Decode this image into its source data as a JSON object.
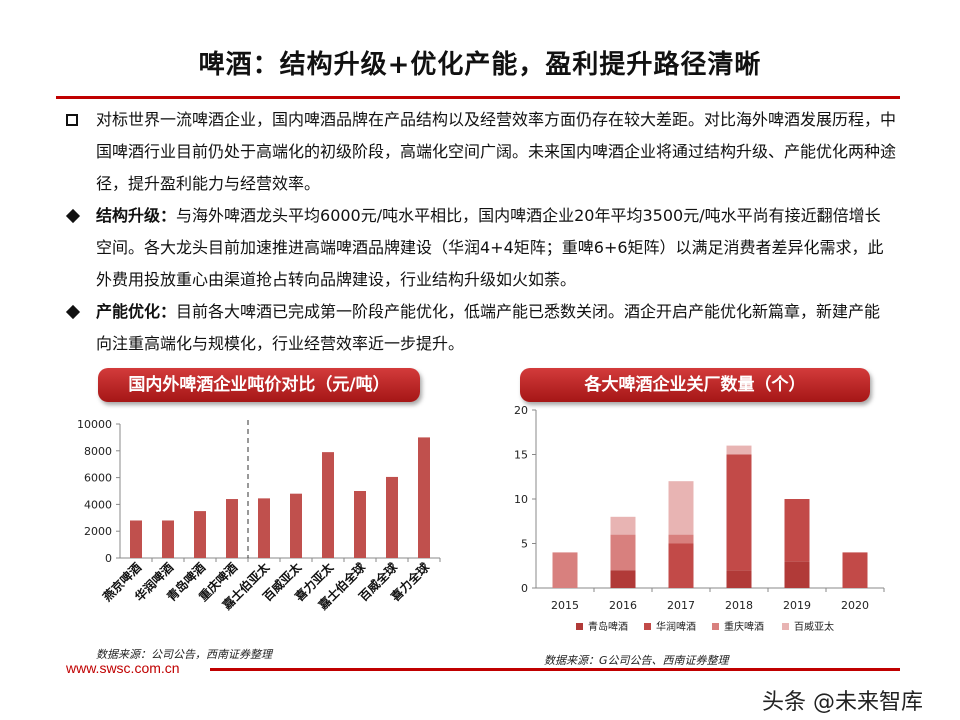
{
  "title": "啤酒：结构升级+优化产能，盈利提升路径清晰",
  "bullets": [
    {
      "marker": "square",
      "lead": "",
      "text": "对标世界一流啤酒企业，国内啤酒品牌在产品结构以及经营效率方面仍存在较大差距。对比海外啤酒发展历程，中国啤酒行业目前仍处于高端化的初级阶段，高端化空间广阔。未来国内啤酒企业将通过结构升级、产能优化两种途径，提升盈利能力与经营效率。"
    },
    {
      "marker": "diamond",
      "lead": "结构升级：",
      "text": "与海外啤酒龙头平均6000元/吨水平相比，国内啤酒企业20年平均3500元/吨水平尚有接近翻倍增长空间。各大龙头目前加速推进高端啤酒品牌建设（华润4+4矩阵；重啤6+6矩阵）以满足消费者差异化需求，此外费用投放重心由渠道抢占转向品牌建设，行业结构升级如火如荼。"
    },
    {
      "marker": "diamond",
      "lead": "产能优化：",
      "text": "目前各大啤酒已完成第一阶段产能优化，低端产能已悉数关闭。酒企开启产能优化新篇章，新建产能向注重高端化与规模化，行业经营效率近一步提升。"
    }
  ],
  "left_chart": {
    "header": "国内外啤酒企业吨价对比（元/吨）",
    "source": "数据来源：公司公告，西南证券整理"
  },
  "right_chart": {
    "header": "各大啤酒企业关厂数量（个）",
    "source": "数据来源：G公司公告、西南证券整理"
  },
  "footer": {
    "url": "www.swsc.com.cn",
    "watermark": "头条 @未来智库"
  },
  "colors": {
    "accent": "#c00000",
    "bar": "#c0504d",
    "qingdao": "#b13a38",
    "huarun": "#c24a48",
    "chongqing": "#d8807e",
    "baiwei": "#e8b4b3"
  },
  "chart_data": [
    {
      "type": "bar",
      "categories": [
        "燕京啤酒",
        "华润啤酒",
        "青岛啤酒",
        "重庆啤酒",
        "嘉士伯亚太",
        "百威亚太",
        "喜力亚太",
        "嘉士伯全球",
        "百威全球",
        "喜力全球"
      ],
      "values": [
        2800,
        2800,
        3500,
        4400,
        4450,
        4800,
        7900,
        5000,
        6050,
        9000
      ],
      "ylim": [
        0,
        10000
      ],
      "yticks": [
        0,
        2000,
        4000,
        6000,
        8000,
        10000
      ],
      "divider_after_index": 3
    },
    {
      "type": "bar",
      "stacked": true,
      "categories": [
        "2015",
        "2016",
        "2017",
        "2018",
        "2019",
        "2020"
      ],
      "series": [
        {
          "name": "青岛啤酒",
          "values": [
            0,
            2,
            0,
            2,
            3,
            0
          ]
        },
        {
          "name": "华润啤酒",
          "values": [
            0,
            0,
            5,
            13,
            7,
            4
          ]
        },
        {
          "name": "重庆啤酒",
          "values": [
            4,
            4,
            1,
            0,
            0,
            0
          ]
        },
        {
          "name": "百威亚太",
          "values": [
            0,
            2,
            6,
            1,
            0,
            0
          ]
        }
      ],
      "ylim": [
        0,
        20
      ],
      "yticks": [
        0,
        5,
        10,
        15,
        20
      ],
      "legend": "bottom"
    }
  ]
}
